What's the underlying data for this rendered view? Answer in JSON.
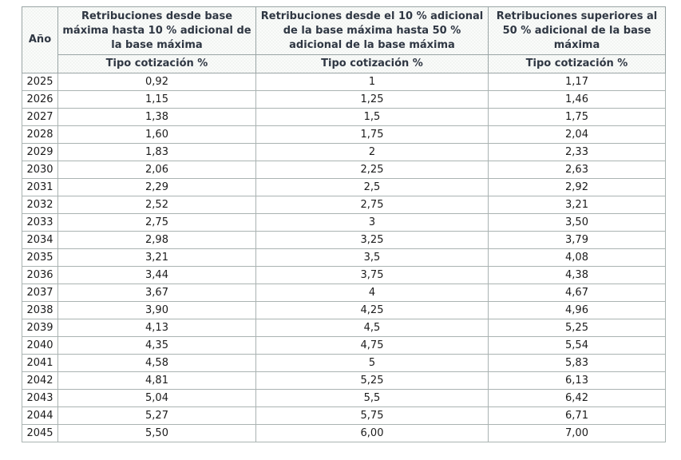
{
  "chart_data": {
    "type": "table",
    "title": "",
    "columns": [
      {
        "header": "Año",
        "subheader": ""
      },
      {
        "header": "Retribuciones desde base máxima hasta 10 % adicional de la base máxima",
        "subheader": "Tipo cotización %"
      },
      {
        "header": "Retribuciones desde el 10 % adicional de la base máxima hasta 50 % adicional de la base máxima",
        "subheader": "Tipo cotización %"
      },
      {
        "header": "Retribuciones superiores al 50 % adicional de la base máxima",
        "subheader": "Tipo cotización %"
      }
    ],
    "rows": [
      [
        "2025",
        "0,92",
        "1",
        "1,17"
      ],
      [
        "2026",
        "1,15",
        "1,25",
        "1,46"
      ],
      [
        "2027",
        "1,38",
        "1,5",
        "1,75"
      ],
      [
        "2028",
        "1,60",
        "1,75",
        "2,04"
      ],
      [
        "2029",
        "1,83",
        "2",
        "2,33"
      ],
      [
        "2030",
        "2,06",
        "2,25",
        "2,63"
      ],
      [
        "2031",
        "2,29",
        "2,5",
        "2,92"
      ],
      [
        "2032",
        "2,52",
        "2,75",
        "3,21"
      ],
      [
        "2033",
        "2,75",
        "3",
        "3,50"
      ],
      [
        "2034",
        "2,98",
        "3,25",
        "3,79"
      ],
      [
        "2035",
        "3,21",
        "3,5",
        "4,08"
      ],
      [
        "2036",
        "3,44",
        "3,75",
        "4,38"
      ],
      [
        "2037",
        "3,67",
        "4",
        "4,67"
      ],
      [
        "2038",
        "3,90",
        "4,25",
        "4,96"
      ],
      [
        "2039",
        "4,13",
        "4,5",
        "5,25"
      ],
      [
        "2040",
        "4,35",
        "4,75",
        "5,54"
      ],
      [
        "2041",
        "4,58",
        "5",
        "5,83"
      ],
      [
        "2042",
        "4,81",
        "5,25",
        "6,13"
      ],
      [
        "2043",
        "5,04",
        "5,5",
        "6,42"
      ],
      [
        "2044",
        "5,27",
        "5,75",
        "6,71"
      ],
      [
        "2045",
        "5,50",
        "6,00",
        "7,00"
      ]
    ]
  },
  "colors": {
    "header_text": "#2f3743",
    "data_text": "#1c1c1c",
    "border": "#aab3b2",
    "header_border": "#9aa5a5",
    "header_bg_light": "#ffffff",
    "header_bg_dark": "#eef1ee",
    "row_bg": "#ffffff"
  }
}
